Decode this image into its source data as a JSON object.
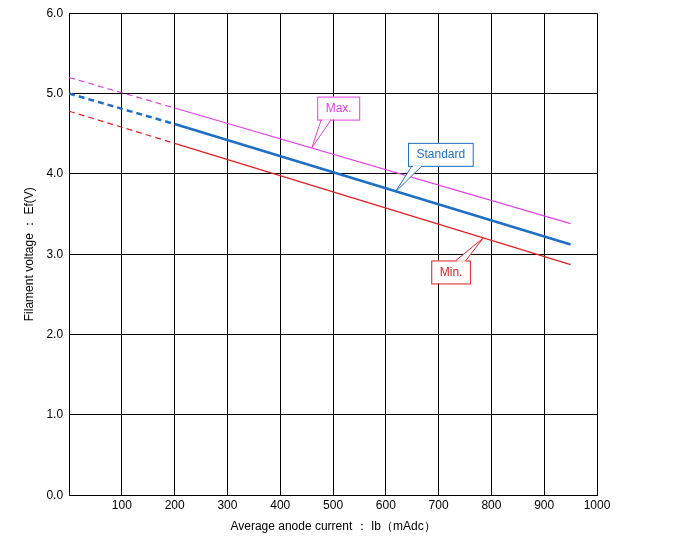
{
  "chart_data": {
    "type": "line",
    "x_label": "Average anode current ： Ib（mAdc）",
    "y_label": "Filament voltage ： Ef(V)",
    "x": [
      0,
      200,
      950
    ],
    "series": [
      {
        "name": "Max.",
        "color": "#e040e0",
        "values": [
          5.2,
          4.82,
          3.38
        ]
      },
      {
        "name": "Standard",
        "color": "#1f6fc4",
        "values": [
          5.0,
          4.62,
          3.12
        ]
      },
      {
        "name": "Min.",
        "color": "#e02020",
        "values": [
          4.78,
          4.38,
          2.87
        ]
      }
    ],
    "xlim": [
      0,
      1000
    ],
    "xticks": [
      100,
      200,
      300,
      400,
      500,
      600,
      700,
      800,
      900,
      1000
    ],
    "ylim": [
      0,
      6
    ],
    "yticks": [
      {
        "value": 0,
        "label": "0.0"
      },
      {
        "value": 1,
        "label": "1.0"
      },
      {
        "value": 2,
        "label": "2.0"
      },
      {
        "value": 3,
        "label": "3.0"
      },
      {
        "value": 4,
        "label": "4.0"
      },
      {
        "value": 5,
        "label": "5.0"
      },
      {
        "value": 6,
        "label": "6.0"
      }
    ],
    "grid": true
  }
}
